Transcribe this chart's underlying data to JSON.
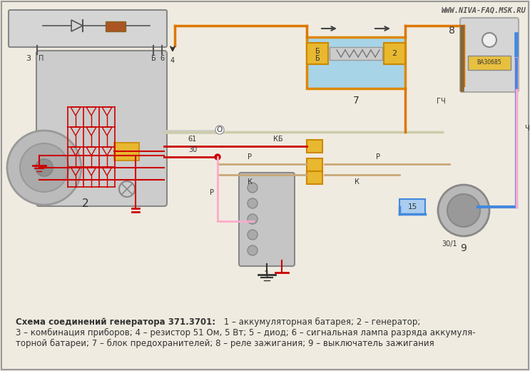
{
  "watermark": "WWW.NIVA-FAQ.MSK.RU",
  "bg_color": "#f0ebe0",
  "caption_bold": "Схема соединений генератора 371.3701:",
  "caption_line1": " 1 – аккумуляторная батарея; 2 – генератор;",
  "caption_line2": "3 – комбинация приборов; 4 – резистор 51 Ом, 5 Вт; 5 – диод; 6 – сигнальная лампа разряда аккумуля-",
  "caption_line3": "торной батареи; 7 – блок предохранителей; 8 – реле зажигания; 9 – выключатель зажигания",
  "figsize": [
    7.43,
    5.2
  ],
  "dpi": 100
}
